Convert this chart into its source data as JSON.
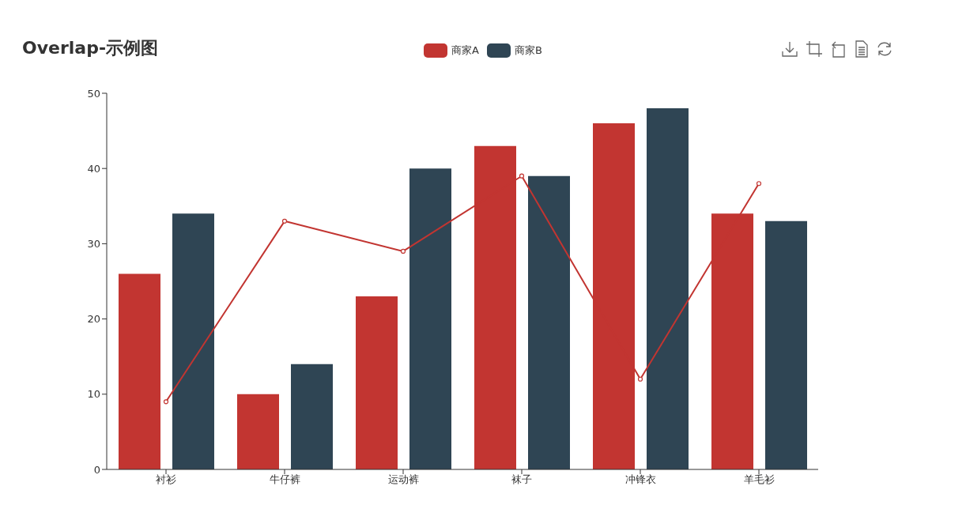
{
  "chart_data": {
    "type": "bar",
    "title": "Overlap-示例图",
    "categories": [
      "衬衫",
      "牛仔裤",
      "运动裤",
      "袜子",
      "冲锋衣",
      "羊毛衫"
    ],
    "series": [
      {
        "name": "商家A",
        "color": "#c23531",
        "values": [
          26,
          10,
          23,
          43,
          46,
          34
        ]
      },
      {
        "name": "商家B",
        "color": "#2f4554",
        "values": [
          34,
          14,
          40,
          39,
          48,
          33
        ]
      },
      {
        "type": "line",
        "color": "#c23531",
        "values": [
          9,
          33,
          29,
          39,
          12,
          38
        ]
      }
    ],
    "ylim": [
      0,
      50
    ],
    "yticks": [
      0,
      10,
      20,
      30,
      40,
      50
    ],
    "grid": false,
    "legend": "top",
    "marker": "circle",
    "line_style": "solid"
  }
}
